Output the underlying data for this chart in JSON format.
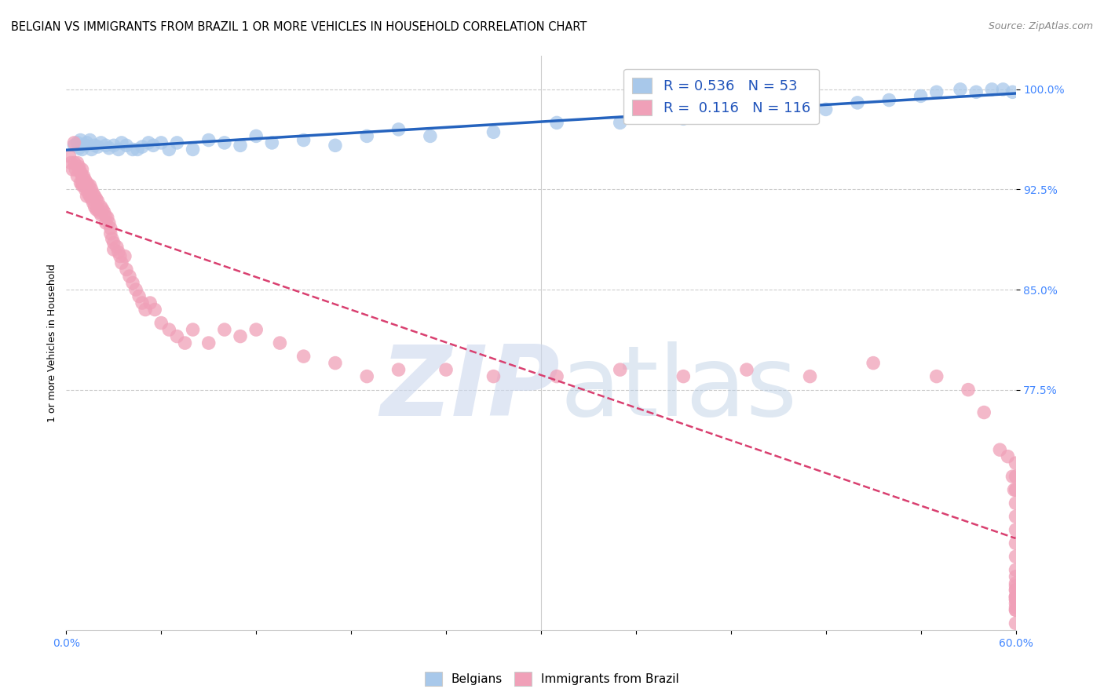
{
  "title": "BELGIAN VS IMMIGRANTS FROM BRAZIL 1 OR MORE VEHICLES IN HOUSEHOLD CORRELATION CHART",
  "source": "Source: ZipAtlas.com",
  "ylabel": "1 or more Vehicles in Household",
  "ytick_values": [
    0.775,
    0.85,
    0.925,
    1.0
  ],
  "ytick_labels": [
    "77.5%",
    "85.0%",
    "92.5%",
    "100.0%"
  ],
  "xlim": [
    0.0,
    0.6
  ],
  "ylim": [
    0.595,
    1.025
  ],
  "legend_R_blue": "0.536",
  "legend_N_blue": "53",
  "legend_R_pink": "0.116",
  "legend_N_pink": "116",
  "legend_label_blue": "Belgians",
  "legend_label_pink": "Immigrants from Brazil",
  "blue_color": "#a8c8ea",
  "pink_color": "#f0a0b8",
  "blue_line_color": "#2563be",
  "pink_line_color": "#d94070",
  "tick_color": "#4488ff",
  "title_fontsize": 10.5,
  "axis_label_fontsize": 9,
  "tick_fontsize": 10,
  "legend_fontsize": 13,
  "blue_x": [
    0.005,
    0.007,
    0.008,
    0.009,
    0.01,
    0.012,
    0.013,
    0.015,
    0.016,
    0.018,
    0.02,
    0.022,
    0.025,
    0.027,
    0.03,
    0.033,
    0.035,
    0.038,
    0.042,
    0.045,
    0.048,
    0.052,
    0.055,
    0.06,
    0.065,
    0.07,
    0.08,
    0.09,
    0.1,
    0.11,
    0.12,
    0.13,
    0.15,
    0.17,
    0.19,
    0.21,
    0.23,
    0.27,
    0.31,
    0.35,
    0.39,
    0.42,
    0.45,
    0.48,
    0.5,
    0.52,
    0.54,
    0.55,
    0.565,
    0.575,
    0.585,
    0.592,
    0.598
  ],
  "blue_y": [
    0.958,
    0.96,
    0.956,
    0.962,
    0.955,
    0.958,
    0.96,
    0.962,
    0.955,
    0.958,
    0.957,
    0.96,
    0.958,
    0.956,
    0.958,
    0.955,
    0.96,
    0.958,
    0.955,
    0.955,
    0.957,
    0.96,
    0.958,
    0.96,
    0.955,
    0.96,
    0.955,
    0.962,
    0.96,
    0.958,
    0.965,
    0.96,
    0.962,
    0.958,
    0.965,
    0.97,
    0.965,
    0.968,
    0.975,
    0.975,
    0.978,
    0.98,
    0.985,
    0.985,
    0.99,
    0.992,
    0.995,
    0.998,
    1.0,
    0.998,
    1.0,
    1.0,
    0.998
  ],
  "pink_x": [
    0.002,
    0.003,
    0.004,
    0.005,
    0.005,
    0.006,
    0.007,
    0.007,
    0.008,
    0.008,
    0.009,
    0.009,
    0.01,
    0.01,
    0.01,
    0.01,
    0.011,
    0.011,
    0.012,
    0.012,
    0.013,
    0.013,
    0.014,
    0.014,
    0.015,
    0.015,
    0.016,
    0.016,
    0.017,
    0.017,
    0.018,
    0.018,
    0.019,
    0.019,
    0.02,
    0.02,
    0.021,
    0.022,
    0.022,
    0.023,
    0.024,
    0.025,
    0.025,
    0.026,
    0.027,
    0.028,
    0.028,
    0.029,
    0.03,
    0.03,
    0.032,
    0.033,
    0.034,
    0.035,
    0.037,
    0.038,
    0.04,
    0.042,
    0.044,
    0.046,
    0.048,
    0.05,
    0.053,
    0.056,
    0.06,
    0.065,
    0.07,
    0.075,
    0.08,
    0.09,
    0.1,
    0.11,
    0.12,
    0.135,
    0.15,
    0.17,
    0.19,
    0.21,
    0.24,
    0.27,
    0.31,
    0.35,
    0.39,
    0.43,
    0.47,
    0.51,
    0.55,
    0.57,
    0.58,
    0.59,
    0.595,
    0.598,
    0.599,
    0.6,
    0.6,
    0.6,
    0.6,
    0.6,
    0.6,
    0.6,
    0.6,
    0.6,
    0.6,
    0.6,
    0.6,
    0.6,
    0.6,
    0.6,
    0.6,
    0.6,
    0.6,
    0.6,
    0.6,
    0.6,
    0.6,
    0.6,
    0.6
  ],
  "pink_y": [
    0.95,
    0.945,
    0.94,
    0.96,
    0.945,
    0.94,
    0.945,
    0.935,
    0.94,
    0.942,
    0.938,
    0.93,
    0.94,
    0.935,
    0.93,
    0.928,
    0.935,
    0.928,
    0.932,
    0.925,
    0.93,
    0.92,
    0.928,
    0.922,
    0.928,
    0.92,
    0.925,
    0.918,
    0.922,
    0.915,
    0.92,
    0.912,
    0.918,
    0.91,
    0.916,
    0.91,
    0.908,
    0.912,
    0.906,
    0.91,
    0.908,
    0.905,
    0.9,
    0.904,
    0.9,
    0.896,
    0.892,
    0.888,
    0.885,
    0.88,
    0.882,
    0.878,
    0.875,
    0.87,
    0.875,
    0.865,
    0.86,
    0.855,
    0.85,
    0.845,
    0.84,
    0.835,
    0.84,
    0.835,
    0.825,
    0.82,
    0.815,
    0.81,
    0.82,
    0.81,
    0.82,
    0.815,
    0.82,
    0.81,
    0.8,
    0.795,
    0.785,
    0.79,
    0.79,
    0.785,
    0.785,
    0.79,
    0.785,
    0.79,
    0.785,
    0.795,
    0.785,
    0.775,
    0.758,
    0.73,
    0.725,
    0.71,
    0.7,
    0.72,
    0.71,
    0.7,
    0.69,
    0.68,
    0.67,
    0.66,
    0.65,
    0.64,
    0.63,
    0.62,
    0.61,
    0.6,
    0.62,
    0.61,
    0.625,
    0.615,
    0.62,
    0.628,
    0.635,
    0.618,
    0.625,
    0.612,
    0.618
  ]
}
